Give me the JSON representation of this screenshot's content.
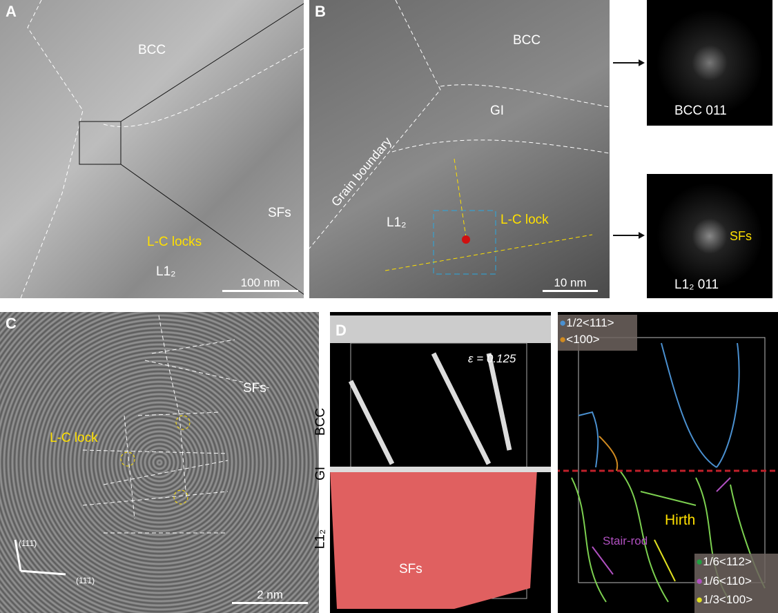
{
  "panelA": {
    "letter": "A",
    "bcc": "BCC",
    "sfs": "SFs",
    "locks": "L-C locks",
    "l12": "L1₂",
    "scale": "100 nm"
  },
  "panelB": {
    "letter": "B",
    "bcc": "BCC",
    "gi": "GI",
    "gb": "Grain boundary",
    "l12": "L1₂",
    "lock": "L-C lock",
    "scale": "10 nm"
  },
  "fft": {
    "top": "BCC 011",
    "bottom": "L1₂ 011",
    "sfs": "SFs"
  },
  "panelC": {
    "letter": "C",
    "sfs": "SFs",
    "lock": "L-C lock",
    "dir1": "(111̄)",
    "dir2": "(11̄1)",
    "scale": "2 nm"
  },
  "panelD": {
    "letter": "D",
    "strain": "ε = 0.125",
    "bcc": "BCC",
    "gi": "GI",
    "l12": "L1₂",
    "sfs": "SFs"
  },
  "panelE": {
    "legend_top": [
      "1/2<111>",
      "<100>"
    ],
    "legend_bottom": [
      "1/6<112>",
      "1/6<110>",
      "1/3<100>"
    ],
    "hirth": "Hirth",
    "stair": "Stair-rod",
    "colors": {
      "b111": "#4a90d0",
      "b100": "#d08a20",
      "s112": "#20a040",
      "s110": "#b050c0",
      "s100": "#e0e020",
      "line": "#7cd050"
    }
  },
  "colors": {
    "annotation": "#ffe000",
    "gi_line": "#c0202a",
    "lock_box": "#29a8e0"
  }
}
